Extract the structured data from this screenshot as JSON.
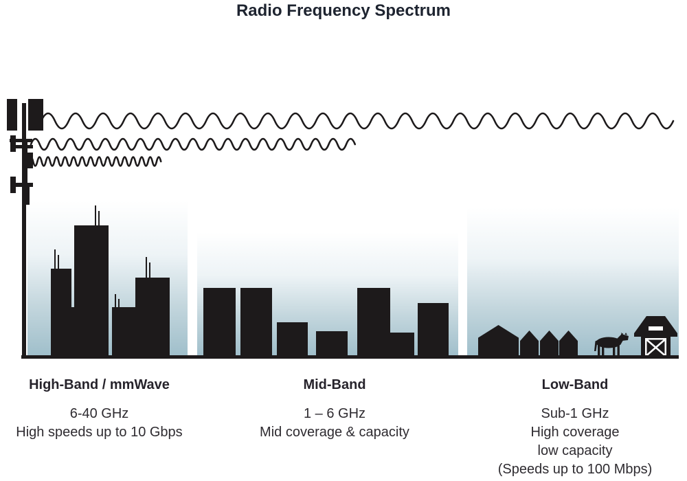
{
  "title": "Radio Frequency Spectrum",
  "colors": {
    "silhouette_ink": "#1d1a1b",
    "sky_gradient_bottom": "#a0bfcb",
    "sky_gradient_top": "#ffffff",
    "text": "#2e2b30"
  },
  "bands": [
    {
      "name": "High-Band / mmWave",
      "lines": [
        "6-40 GHz",
        "High speeds up to 10 Gbps"
      ]
    },
    {
      "name": "Mid-Band",
      "lines": [
        "1 – 6 GHz",
        "Mid coverage & capacity"
      ]
    },
    {
      "name": "Low-Band",
      "lines": [
        "Sub-1 GHz",
        "High coverage",
        "low capacity",
        "(Speeds up to 100 Mbps)"
      ]
    }
  ],
  "icons": {
    "tower": "cell-tower-icon",
    "waves": [
      {
        "name": "long-wavelength-wave",
        "band": "Low-Band",
        "reach": "farthest"
      },
      {
        "name": "medium-wavelength-wave",
        "band": "Mid-Band",
        "reach": "medium"
      },
      {
        "name": "short-wavelength-wave",
        "band": "High-Band / mmWave",
        "reach": "shortest"
      }
    ],
    "scenes": [
      "city-skyline",
      "town-buildings",
      "rural-houses-cow-barn"
    ]
  }
}
